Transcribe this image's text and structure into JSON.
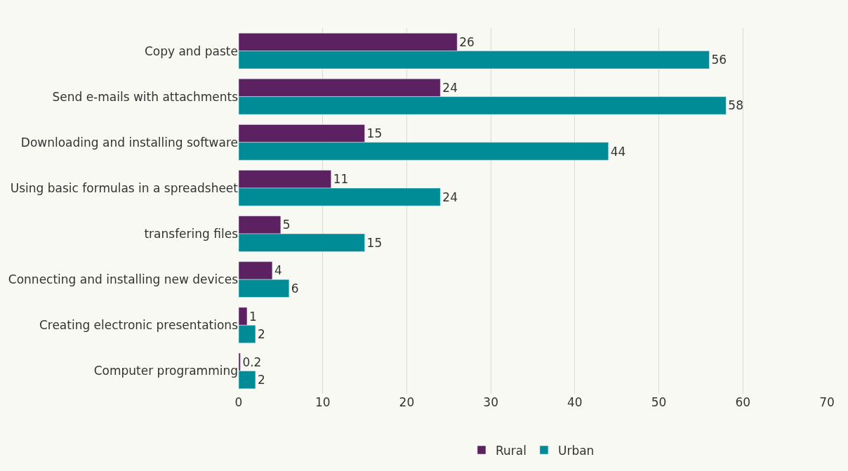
{
  "chart_data": {
    "type": "bar",
    "orientation": "horizontal",
    "categories": [
      "Copy and paste",
      "Send e-mails with attachments",
      "Downloading and installing software",
      "Using basic formulas in a spreadsheet",
      "transfering files",
      "Connecting and installing new devices",
      "Creating electronic presentations",
      "Computer programming"
    ],
    "series": [
      {
        "name": "Rural",
        "color": "#5c2160",
        "values": [
          26,
          24,
          15,
          11,
          5,
          4,
          1,
          0.2
        ]
      },
      {
        "name": "Urban",
        "color": "#008c96",
        "values": [
          56,
          58,
          44,
          24,
          15,
          6,
          2,
          2
        ]
      }
    ],
    "xlim": [
      0,
      70
    ],
    "xticks": [
      0,
      10,
      20,
      30,
      40,
      50,
      60,
      70
    ],
    "grid": "x",
    "legend": "bottom",
    "data_labels": true
  }
}
